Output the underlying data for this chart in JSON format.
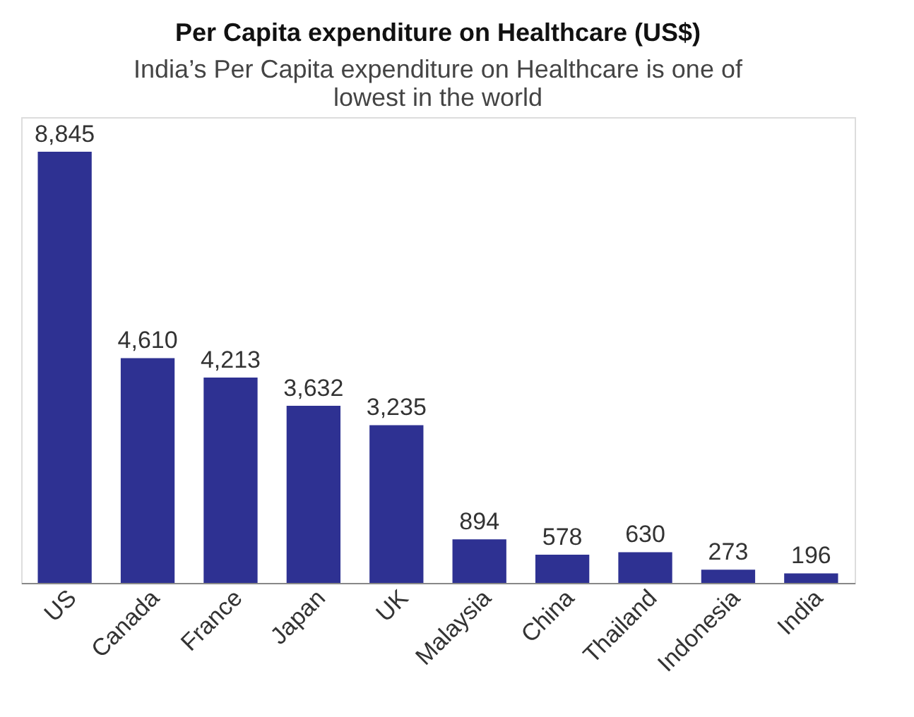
{
  "chart_data": {
    "type": "bar",
    "title": "Per Capita expenditure on Healthcare (US$)",
    "subtitle": "India’s Per Capita expenditure on Healthcare is one of lowest in the world",
    "categories": [
      "US",
      "Canada",
      "France",
      "Japan",
      "UK",
      "Malaysia",
      "China",
      "Thailand",
      "Indonesia",
      "India"
    ],
    "values": [
      8845,
      4610,
      4213,
      3632,
      3235,
      894,
      578,
      630,
      273,
      196
    ],
    "value_labels": [
      "8,845",
      "4,610",
      "4,213",
      "3,632",
      "3,235",
      "894",
      "578",
      "630",
      "273",
      "196"
    ],
    "color": "#2e3192",
    "tick_labels": "x"
  }
}
